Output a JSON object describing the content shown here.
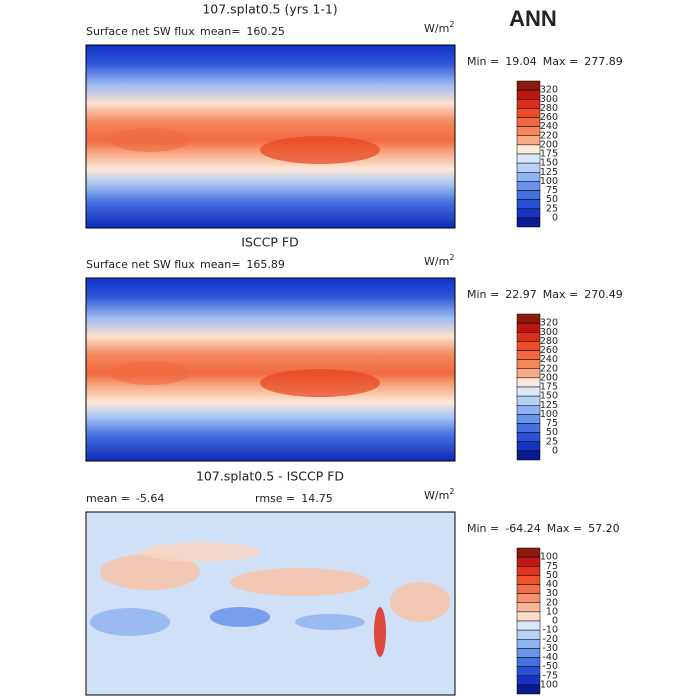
{
  "season": "ANN",
  "panels": [
    {
      "title": "107.splat0.5 (yrs 1-1)",
      "left_label": "Surface net SW flux",
      "stats": [
        {
          "label": "mean=",
          "value": "160.25"
        }
      ],
      "units": "W/m",
      "units_sup": "2",
      "min_label": "Min =",
      "min": "19.04",
      "max_label": "Max =",
      "max": "277.89",
      "colorbar": {
        "levels": [
          320,
          300,
          280,
          260,
          240,
          220,
          200,
          175,
          150,
          125,
          100,
          75,
          50,
          25,
          0
        ],
        "colors": [
          "#8b1a0f",
          "#b8160f",
          "#dc2e1d",
          "#ee4d2a",
          "#f26841",
          "#f5875e",
          "#f8aa86",
          "#fde8da",
          "#dbe8fb",
          "#b8d1f7",
          "#8fb3f2",
          "#6a93ea",
          "#4470e0",
          "#2650d6",
          "#1533c0",
          "#0b1a8f"
        ]
      }
    },
    {
      "title": "ISCCP FD",
      "left_label": "Surface net SW flux",
      "stats": [
        {
          "label": "mean=",
          "value": "165.89"
        }
      ],
      "units": "W/m",
      "units_sup": "2",
      "min_label": "Min =",
      "min": "22.97",
      "max_label": "Max =",
      "max": "270.49",
      "colorbar": {
        "levels": [
          320,
          300,
          280,
          260,
          240,
          220,
          200,
          175,
          150,
          125,
          100,
          75,
          50,
          25,
          0
        ],
        "colors": [
          "#8b1a0f",
          "#b8160f",
          "#dc2e1d",
          "#ee4d2a",
          "#f26841",
          "#f5875e",
          "#f8aa86",
          "#fde8da",
          "#dbe8fb",
          "#b8d1f7",
          "#8fb3f2",
          "#6a93ea",
          "#4470e0",
          "#2650d6",
          "#1533c0",
          "#0b1a8f"
        ]
      }
    },
    {
      "title": "107.splat0.5 - ISCCP FD",
      "stats": [
        {
          "label": "mean =",
          "value": "-5.64"
        },
        {
          "label": "rmse =",
          "value": "14.75"
        }
      ],
      "units": "W/m",
      "units_sup": "2",
      "min_label": "Min =",
      "min": "-64.24",
      "max_label": "Max =",
      "max": "57.20",
      "colorbar": {
        "levels": [
          100,
          75,
          50,
          40,
          30,
          20,
          10,
          0,
          -10,
          -20,
          -30,
          -40,
          -50,
          -75,
          -100
        ],
        "colors": [
          "#8b1a0f",
          "#c0171b",
          "#e2331f",
          "#f0522b",
          "#f27048",
          "#f5906c",
          "#f8b598",
          "#fcdcca",
          "#dbe8fb",
          "#b8d1f7",
          "#8fb3f2",
          "#6a93ea",
          "#4470e0",
          "#2650d6",
          "#1533c0",
          "#0b1a8f"
        ]
      }
    }
  ]
}
